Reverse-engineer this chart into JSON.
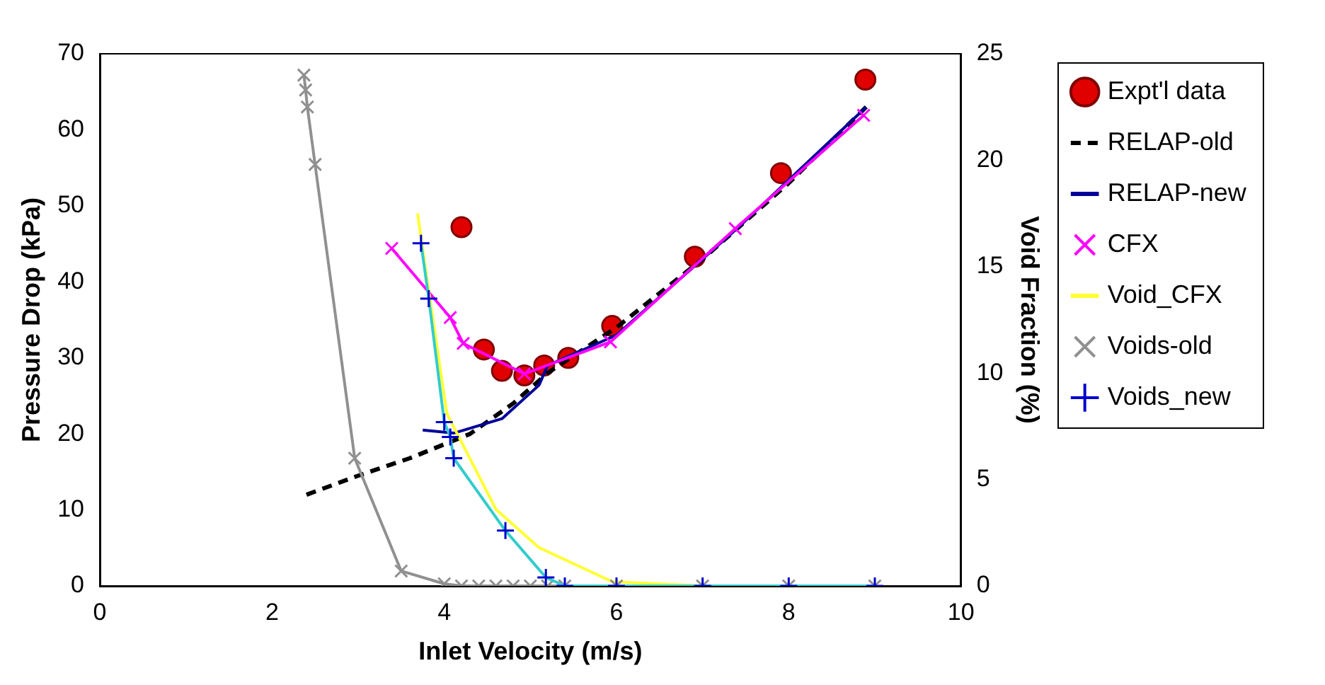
{
  "chart_data": {
    "type": "line",
    "xlabel": "Inlet Velocity (m/s)",
    "ylabel": "Pressure Drop (kPa)",
    "y2label": "Void Fraction (%)",
    "xlim": [
      0,
      10
    ],
    "xticks": [
      0,
      2,
      4,
      6,
      8,
      10
    ],
    "ylim": [
      0,
      70
    ],
    "yticks": [
      0,
      10,
      20,
      30,
      40,
      50,
      60,
      70
    ],
    "y2lim": [
      0,
      25
    ],
    "y2ticks": [
      0,
      5,
      10,
      15,
      20,
      25
    ],
    "grid": false,
    "legend": "right",
    "series": [
      {
        "name": "Expt'l data",
        "type": "scatter",
        "color": "#e00000",
        "marker": "circle",
        "x": [
          4.2,
          4.46,
          4.67,
          4.93,
          5.16,
          5.44,
          5.95,
          6.91,
          7.91,
          8.89
        ],
        "values": [
          47.2,
          31.1,
          28.3,
          27.7,
          29.0,
          30.0,
          34.2,
          43.3,
          54.3,
          66.6
        ]
      },
      {
        "name": "RELAP-old",
        "color": "#000000",
        "marker": "none",
        "line_style": "dashed",
        "x": [
          2.4,
          3.0,
          3.6,
          4.3,
          4.8,
          5.2,
          6,
          7,
          8,
          8.9
        ],
        "values": [
          12,
          14.5,
          16.8,
          20,
          24,
          28,
          34,
          43,
          53,
          63
        ]
      },
      {
        "name": "RELAP-new",
        "color": "#000099",
        "marker": "none",
        "line_style": "solid",
        "x": [
          3.75,
          4.11,
          4.67,
          5.1,
          5.2,
          6,
          7.4,
          8.9
        ],
        "values": [
          20.5,
          20.1,
          22,
          26.4,
          29,
          33,
          47,
          63
        ]
      },
      {
        "name": "CFX",
        "color": "#ff00ff",
        "marker": "cross",
        "line_style": "solid",
        "x": [
          3.39,
          4.07,
          4.22,
          4.93,
          5.93,
          7.38,
          8.87
        ],
        "values": [
          44.4,
          35.3,
          31.9,
          27.9,
          32.1,
          47.0,
          61.9
        ]
      },
      {
        "name": "Void_CFX",
        "axis": "y2",
        "color": "#ffff33",
        "marker": "none",
        "line_style": "solid",
        "x": [
          3.69,
          3.8,
          4.03,
          4.6,
          5.1,
          5.95,
          7,
          9
        ],
        "values": [
          17.5,
          14.4,
          8.1,
          3.6,
          1.8,
          0.2,
          0,
          0
        ]
      },
      {
        "name": "Voids-old",
        "axis": "y2",
        "color": "#909090",
        "marker": "cross",
        "line_style": "solid",
        "x": [
          2.37,
          2.39,
          2.41,
          2.5,
          2.96,
          3.5,
          4.0,
          4.2,
          4.4,
          4.6,
          4.8,
          5.0,
          5.2,
          5.4,
          6,
          7,
          8,
          9
        ],
        "values": [
          24,
          23.3,
          22.5,
          19.8,
          6.0,
          0.7,
          0.1,
          0,
          0,
          0,
          0,
          0,
          0,
          0,
          0,
          0,
          0,
          0
        ]
      },
      {
        "name": "Voids_new",
        "axis": "y2",
        "color": "#33cccc",
        "marker": "plus",
        "line_style": "solid",
        "x": [
          3.73,
          3.82,
          4.0,
          4.07,
          4.11,
          4.71,
          5.18,
          5.4,
          6,
          7,
          8,
          9
        ],
        "values": [
          16.1,
          13.5,
          7.7,
          7.0,
          6.0,
          2.6,
          0.4,
          0,
          0,
          0,
          0,
          0
        ]
      }
    ]
  }
}
